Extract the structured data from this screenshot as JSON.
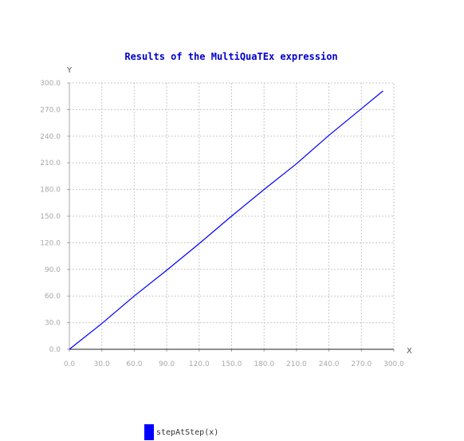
{
  "chart_data": {
    "type": "line",
    "title": "Results of the MultiQuaTEx expression",
    "xlabel": "X",
    "ylabel": "Y",
    "xlim": [
      0,
      300
    ],
    "ylim": [
      0,
      300
    ],
    "x_ticks": [
      "0.0",
      "30.0",
      "60.0",
      "90.0",
      "120.0",
      "150.0",
      "180.0",
      "210.0",
      "240.0",
      "270.0",
      "300.0"
    ],
    "y_ticks": [
      "0.0",
      "30.0",
      "60.0",
      "90.0",
      "120.0",
      "150.0",
      "180.0",
      "210.0",
      "240.0",
      "270.0",
      "300.0"
    ],
    "grid": true,
    "legend_position": "bottom",
    "series": [
      {
        "name": "stepAtStep(x)",
        "color": "#0000ff",
        "x": [
          0,
          30,
          60,
          90,
          120,
          150,
          180,
          210,
          240,
          270,
          290
        ],
        "y": [
          0,
          29,
          60,
          89,
          119,
          150,
          180,
          209,
          241,
          271,
          291
        ]
      }
    ]
  }
}
